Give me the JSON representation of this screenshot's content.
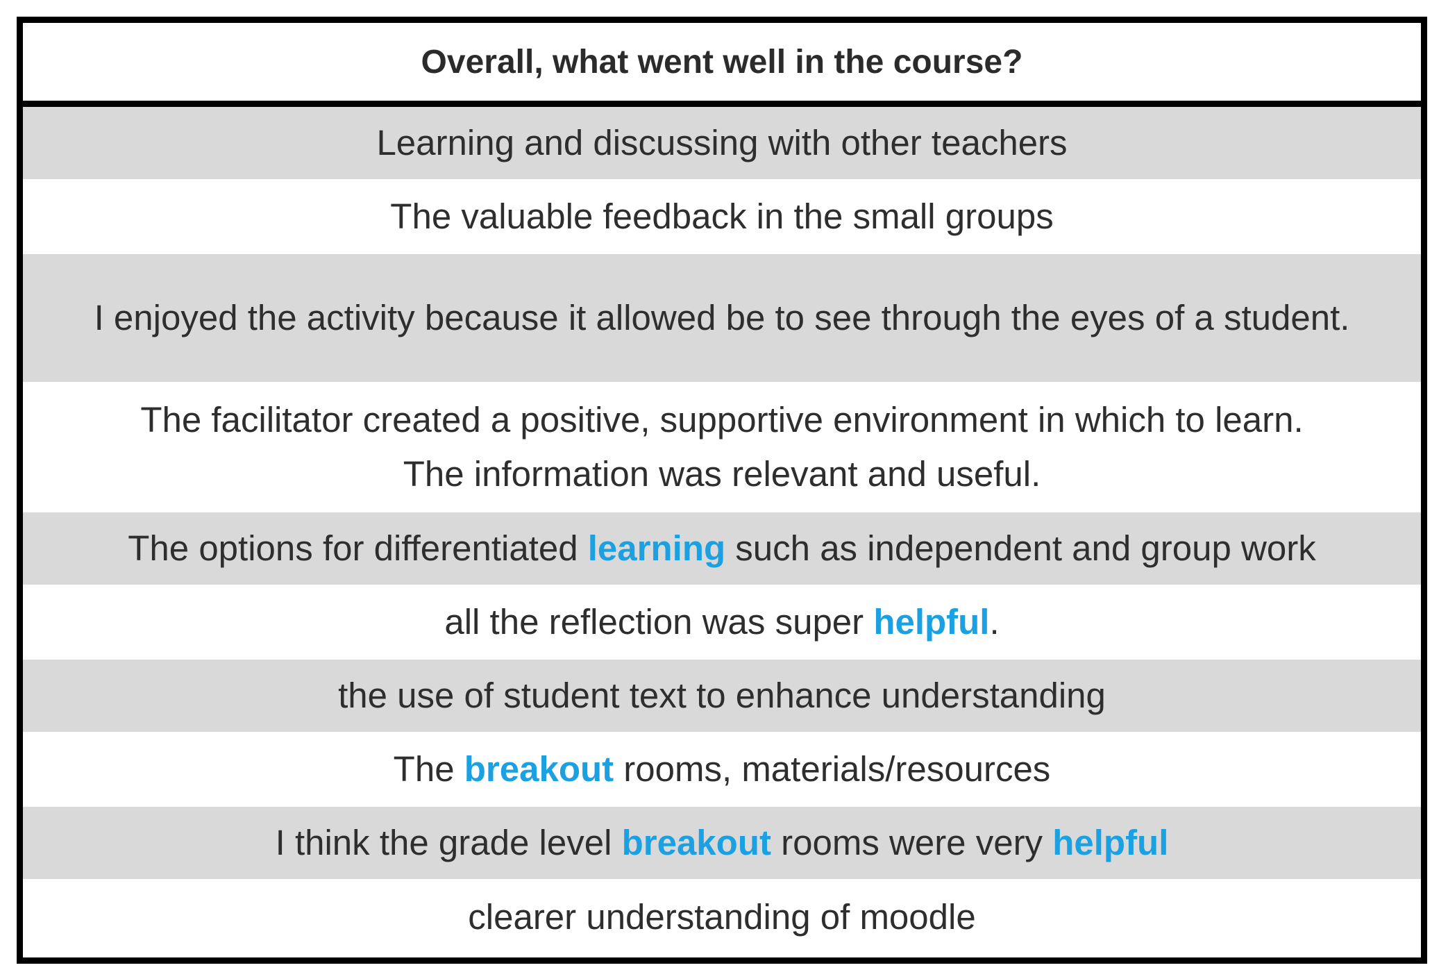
{
  "header": {
    "title": "Overall, what went well in the course?"
  },
  "responses": [
    {
      "text": "Learning and discussing with other teachers"
    },
    {
      "text": "The valuable feedback in the small groups"
    },
    {
      "text": "I enjoyed the activity because it allowed be to see through the eyes of a student."
    },
    {
      "line1": "The facilitator created a positive, supportive environment in which to learn.",
      "line2": "The information was relevant and useful."
    },
    {
      "before": "The options for differentiated ",
      "highlight": "learning",
      "after": " such as independent and group work"
    },
    {
      "before": "all the reflection was super ",
      "highlight": "helpful",
      "after": "."
    },
    {
      "text": "the use of student text to enhance understanding"
    },
    {
      "before": "The ",
      "highlight": "breakout",
      "after": " rooms, materials/resources"
    },
    {
      "before": "I think the grade level ",
      "highlight": "breakout",
      "middle": " rooms were very ",
      "highlight2": "helpful"
    },
    {
      "text": "clearer understanding of moodle"
    }
  ],
  "colors": {
    "highlight": "#1ba1e2",
    "shaded_row": "#d9d9d9",
    "border": "#000000"
  }
}
